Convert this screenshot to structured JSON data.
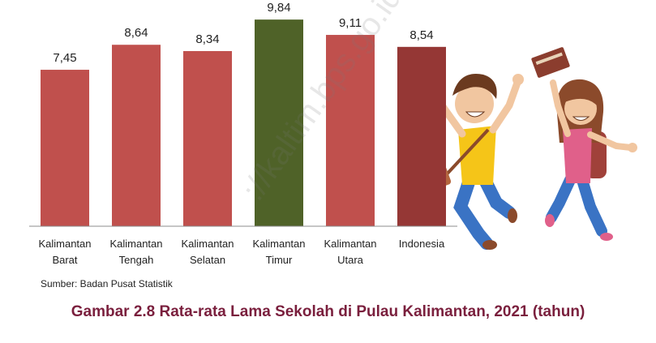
{
  "chart_data": {
    "type": "bar",
    "categories": [
      [
        "Kalimantan",
        "Barat"
      ],
      [
        "Kalimantan",
        "Tengah"
      ],
      [
        "Kalimantan",
        "Selatan"
      ],
      [
        "Kalimantan",
        "Timur"
      ],
      [
        "Kalimantan",
        "Utara"
      ],
      [
        "Indonesia"
      ]
    ],
    "values": [
      7.45,
      8.64,
      8.34,
      9.84,
      9.11,
      8.54
    ],
    "value_labels": [
      "7,45",
      "8,64",
      "8,34",
      "9,84",
      "9,11",
      "8,54"
    ],
    "bar_colors": [
      "#c0504d",
      "#c0504d",
      "#c0504d",
      "#4f6228",
      "#c0504d",
      "#953735"
    ],
    "ylim": [
      0,
      10
    ],
    "grid": false,
    "legend": "none",
    "title": "",
    "xlabel": "",
    "ylabel": ""
  },
  "source": "Sumber: Badan Pusat Statistik",
  "caption": "Gambar 2.8 Rata-rata Lama Sekolah di Pulau Kalimantan, 2021 (tahun)",
  "watermark": "://kaltim.bps.go.id",
  "colors": {
    "caption": "#7a1f3d",
    "axis": "#8c8c8c"
  }
}
